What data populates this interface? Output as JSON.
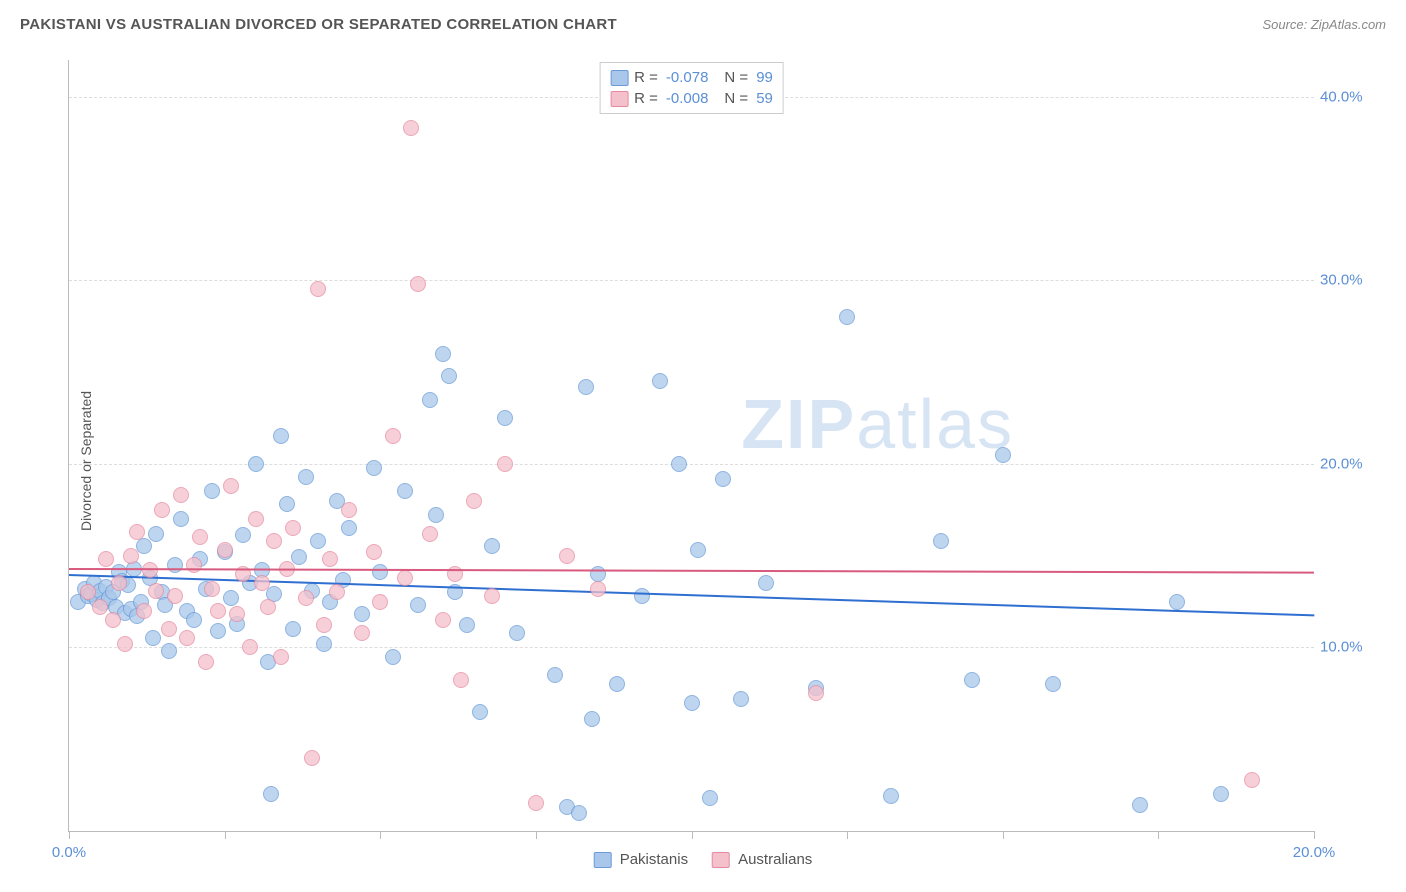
{
  "header": {
    "title": "PAKISTANI VS AUSTRALIAN DIVORCED OR SEPARATED CORRELATION CHART",
    "source": "Source: ZipAtlas.com"
  },
  "chart": {
    "type": "scatter",
    "ylabel": "Divorced or Separated",
    "xlim": [
      0,
      20
    ],
    "ylim": [
      0,
      42
    ],
    "xtick_step": 2.5,
    "xtick_labels": {
      "0": "0.0%",
      "20": "20.0%"
    },
    "ytick_values": [
      10,
      20,
      30,
      40
    ],
    "ytick_labels": [
      "10.0%",
      "20.0%",
      "30.0%",
      "40.0%"
    ],
    "background_color": "#ffffff",
    "grid_color": "#dddddd",
    "axis_color": "#bbbbbb",
    "marker_radius": 8,
    "series": {
      "pakistanis": {
        "label": "Pakistanis",
        "fill": "#a9c7ea",
        "stroke": "#6a9bd8",
        "R": "-0.078",
        "N": "99",
        "trend": {
          "y_at_x0": 14.0,
          "y_at_xmax": 11.8,
          "color": "#2f6fd0",
          "width": 2
        },
        "points": [
          [
            0.15,
            12.5
          ],
          [
            0.25,
            13.2
          ],
          [
            0.3,
            12.8
          ],
          [
            0.35,
            12.9
          ],
          [
            0.4,
            13.5
          ],
          [
            0.45,
            12.6
          ],
          [
            0.5,
            13.1
          ],
          [
            0.55,
            12.4
          ],
          [
            0.6,
            13.3
          ],
          [
            0.65,
            12.7
          ],
          [
            0.7,
            13.0
          ],
          [
            0.75,
            12.2
          ],
          [
            0.8,
            14.1
          ],
          [
            0.85,
            13.6
          ],
          [
            0.9,
            11.9
          ],
          [
            0.95,
            13.4
          ],
          [
            1.0,
            12.1
          ],
          [
            1.05,
            14.3
          ],
          [
            1.1,
            11.7
          ],
          [
            1.15,
            12.5
          ],
          [
            1.2,
            15.5
          ],
          [
            1.3,
            13.8
          ],
          [
            1.35,
            10.5
          ],
          [
            1.4,
            16.2
          ],
          [
            1.5,
            13.0
          ],
          [
            1.55,
            12.3
          ],
          [
            1.6,
            9.8
          ],
          [
            1.7,
            14.5
          ],
          [
            1.8,
            17.0
          ],
          [
            1.9,
            12.0
          ],
          [
            2.0,
            11.5
          ],
          [
            2.1,
            14.8
          ],
          [
            2.2,
            13.2
          ],
          [
            2.3,
            18.5
          ],
          [
            2.4,
            10.9
          ],
          [
            2.5,
            15.2
          ],
          [
            2.6,
            12.7
          ],
          [
            2.7,
            11.3
          ],
          [
            2.8,
            16.1
          ],
          [
            2.9,
            13.5
          ],
          [
            3.0,
            20.0
          ],
          [
            3.1,
            14.2
          ],
          [
            3.2,
            9.2
          ],
          [
            3.3,
            12.9
          ],
          [
            3.4,
            21.5
          ],
          [
            3.5,
            17.8
          ],
          [
            3.6,
            11.0
          ],
          [
            3.7,
            14.9
          ],
          [
            3.8,
            19.3
          ],
          [
            3.9,
            13.1
          ],
          [
            4.0,
            15.8
          ],
          [
            4.1,
            10.2
          ],
          [
            4.2,
            12.5
          ],
          [
            4.3,
            18.0
          ],
          [
            4.4,
            13.7
          ],
          [
            4.5,
            16.5
          ],
          [
            4.7,
            11.8
          ],
          [
            4.9,
            19.8
          ],
          [
            5.0,
            14.1
          ],
          [
            5.2,
            9.5
          ],
          [
            5.4,
            18.5
          ],
          [
            5.6,
            12.3
          ],
          [
            5.8,
            23.5
          ],
          [
            5.9,
            17.2
          ],
          [
            6.0,
            26.0
          ],
          [
            6.1,
            24.8
          ],
          [
            6.2,
            13.0
          ],
          [
            6.4,
            11.2
          ],
          [
            6.6,
            6.5
          ],
          [
            6.8,
            15.5
          ],
          [
            7.0,
            22.5
          ],
          [
            7.2,
            10.8
          ],
          [
            7.8,
            8.5
          ],
          [
            8.0,
            1.3
          ],
          [
            8.2,
            1.0
          ],
          [
            8.3,
            24.2
          ],
          [
            8.4,
            6.1
          ],
          [
            8.5,
            14.0
          ],
          [
            8.8,
            8.0
          ],
          [
            9.2,
            12.8
          ],
          [
            9.5,
            24.5
          ],
          [
            9.8,
            20.0
          ],
          [
            10.0,
            7.0
          ],
          [
            10.1,
            15.3
          ],
          [
            10.3,
            1.8
          ],
          [
            10.5,
            19.2
          ],
          [
            10.8,
            7.2
          ],
          [
            11.2,
            13.5
          ],
          [
            12.0,
            7.8
          ],
          [
            12.5,
            28.0
          ],
          [
            13.2,
            1.9
          ],
          [
            14.0,
            15.8
          ],
          [
            14.5,
            8.2
          ],
          [
            15.0,
            20.5
          ],
          [
            15.8,
            8.0
          ],
          [
            17.2,
            1.4
          ],
          [
            17.8,
            12.5
          ],
          [
            18.5,
            2.0
          ],
          [
            3.25,
            2.0
          ]
        ]
      },
      "australians": {
        "label": "Australians",
        "fill": "#f3c0cb",
        "stroke": "#e58ba1",
        "R": "-0.008",
        "N": "59",
        "trend": {
          "y_at_x0": 14.3,
          "y_at_xmax": 14.1,
          "color": "#d85a7e",
          "width": 2
        },
        "points": [
          [
            0.3,
            13.0
          ],
          [
            0.5,
            12.2
          ],
          [
            0.6,
            14.8
          ],
          [
            0.7,
            11.5
          ],
          [
            0.8,
            13.5
          ],
          [
            0.9,
            10.2
          ],
          [
            1.0,
            15.0
          ],
          [
            1.1,
            16.3
          ],
          [
            1.2,
            12.0
          ],
          [
            1.3,
            14.2
          ],
          [
            1.4,
            13.1
          ],
          [
            1.5,
            17.5
          ],
          [
            1.6,
            11.0
          ],
          [
            1.7,
            12.8
          ],
          [
            1.8,
            18.3
          ],
          [
            1.9,
            10.5
          ],
          [
            2.0,
            14.5
          ],
          [
            2.1,
            16.0
          ],
          [
            2.2,
            9.2
          ],
          [
            2.3,
            13.2
          ],
          [
            2.4,
            12.0
          ],
          [
            2.5,
            15.3
          ],
          [
            2.6,
            18.8
          ],
          [
            2.7,
            11.8
          ],
          [
            2.8,
            14.0
          ],
          [
            2.9,
            10.0
          ],
          [
            3.0,
            17.0
          ],
          [
            3.1,
            13.5
          ],
          [
            3.2,
            12.2
          ],
          [
            3.3,
            15.8
          ],
          [
            3.4,
            9.5
          ],
          [
            3.5,
            14.3
          ],
          [
            3.6,
            16.5
          ],
          [
            3.8,
            12.7
          ],
          [
            3.9,
            4.0
          ],
          [
            4.0,
            29.5
          ],
          [
            4.1,
            11.2
          ],
          [
            4.2,
            14.8
          ],
          [
            4.3,
            13.0
          ],
          [
            4.5,
            17.5
          ],
          [
            4.7,
            10.8
          ],
          [
            4.9,
            15.2
          ],
          [
            5.0,
            12.5
          ],
          [
            5.2,
            21.5
          ],
          [
            5.4,
            13.8
          ],
          [
            5.5,
            38.3
          ],
          [
            5.6,
            29.8
          ],
          [
            5.8,
            16.2
          ],
          [
            6.0,
            11.5
          ],
          [
            6.2,
            14.0
          ],
          [
            6.5,
            18.0
          ],
          [
            6.8,
            12.8
          ],
          [
            7.0,
            20.0
          ],
          [
            7.5,
            1.5
          ],
          [
            8.0,
            15.0
          ],
          [
            8.5,
            13.2
          ],
          [
            12.0,
            7.5
          ],
          [
            19.0,
            2.8
          ],
          [
            6.3,
            8.2
          ]
        ]
      }
    },
    "legend_bottom": [
      {
        "label": "Pakistanis",
        "fill": "#a9c7ea",
        "stroke": "#6a9bd8"
      },
      {
        "label": "Australians",
        "fill": "#f3c0cb",
        "stroke": "#e58ba1"
      }
    ],
    "watermark": {
      "text_bold": "ZIP",
      "text_rest": "atlas"
    }
  }
}
